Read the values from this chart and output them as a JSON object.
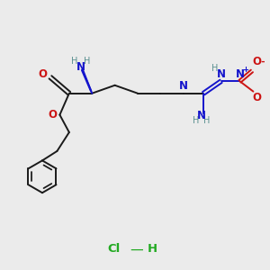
{
  "bg_color": "#ebebeb",
  "bond_color": "#1a1a1a",
  "N_color": "#1414cc",
  "O_color": "#cc1414",
  "H_color": "#5a9090",
  "HCl_color": "#22aa22",
  "bond_lw": 1.4,
  "font_size": 8.5,
  "small_font": 7.0,
  "xlim": [
    0,
    10
  ],
  "ylim": [
    0,
    10
  ],
  "figsize": [
    3.0,
    3.0
  ],
  "dpi": 100
}
